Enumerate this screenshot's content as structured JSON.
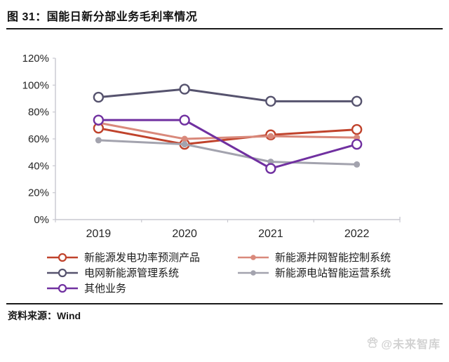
{
  "header": {
    "title": "图 31：国能日新分部业务毛利率情况"
  },
  "source": {
    "label": "资料来源：Wind"
  },
  "watermark": {
    "text": "@未来智库",
    "icon": "paw-icon",
    "color": "#d2d2d2"
  },
  "colors": {
    "background": "#ffffff",
    "title_text": "#111111",
    "rule": "#1a1a1a",
    "axis": "#c8c8d0",
    "tick_label": "#262626"
  },
  "chart_data": {
    "type": "line",
    "title": "国能日新分部业务毛利率情况",
    "categories": [
      "2019",
      "2020",
      "2021",
      "2022"
    ],
    "series": [
      {
        "name": "新能源发电功率预测产品",
        "values": [
          68,
          56,
          63,
          67
        ],
        "color": "#c0432c",
        "marker": "open-circle"
      },
      {
        "name": "新能源并网智能控制系统",
        "values": [
          72,
          60,
          62,
          61
        ],
        "color": "#d9897b",
        "marker": "filled-dot"
      },
      {
        "name": "电网新能源管理系统",
        "values": [
          91,
          97,
          88,
          88
        ],
        "color": "#56536e",
        "marker": "open-circle"
      },
      {
        "name": "新能源电站智能运营系统",
        "values": [
          59,
          56,
          43,
          41
        ],
        "color": "#a3a3ae",
        "marker": "filled-dot"
      },
      {
        "name": "其他业务",
        "values": [
          74,
          74,
          38,
          56
        ],
        "color": "#7030a0",
        "marker": "open-circle"
      }
    ],
    "xlabel": "",
    "ylabel": "",
    "ylim": [
      0,
      120
    ],
    "ytick_step": 20,
    "ytick_labels": [
      "0%",
      "20%",
      "40%",
      "60%",
      "80%",
      "100%",
      "120%"
    ],
    "grid": false,
    "legend_position": "bottom",
    "legend_columns": 2
  }
}
